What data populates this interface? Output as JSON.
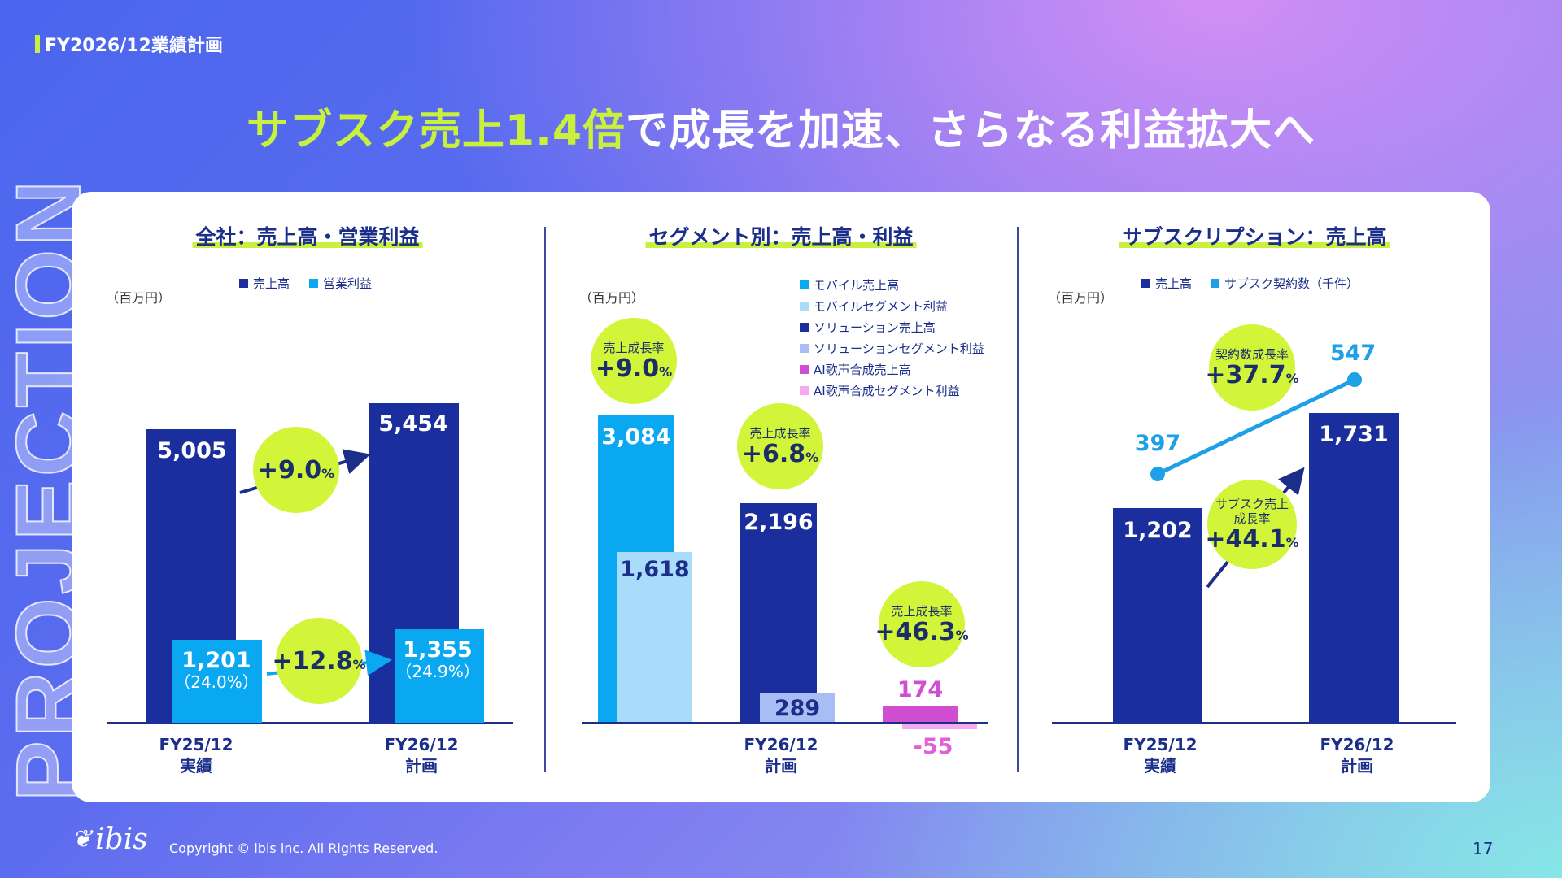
{
  "header": {
    "section_label": "FY2026/12業績計画",
    "title_highlight": "サブスク売上1.4倍",
    "title_rest": "で成長を加速、さらなる利益拡大へ",
    "side_watermark": "PROJECTION"
  },
  "colors": {
    "navy": "#1a2e9e",
    "cyan": "#0aa8f0",
    "light_blue": "#a8dcfa",
    "lavender": "#a9bdf5",
    "magenta": "#d04fd0",
    "pink": "#f5aaf0",
    "lime": "#d2f53a"
  },
  "chart_data": [
    {
      "type": "bar",
      "title": "全社：売上高・営業利益",
      "unit": "（百万円）",
      "categories": [
        "FY25/12 実績",
        "FY26/12 計画"
      ],
      "category_lines": [
        [
          "FY25/12",
          "実績"
        ],
        [
          "FY26/12",
          "計画"
        ]
      ],
      "series": [
        {
          "name": "売上高",
          "color": "#1a2e9e",
          "values": [
            5005,
            5454
          ],
          "labels": [
            "5,005",
            "5,454"
          ]
        },
        {
          "name": "営業利益",
          "color": "#0aa8f0",
          "values": [
            1201,
            1355
          ],
          "labels": [
            "1,201",
            "1,355"
          ],
          "margins": [
            "（24.0%）",
            "（24.9%）"
          ]
        }
      ],
      "annotations": [
        {
          "value": "+9.0",
          "suffix": "%"
        },
        {
          "value": "+12.8",
          "suffix": "%"
        }
      ]
    },
    {
      "type": "bar",
      "title": "セグメント別：売上高・利益",
      "unit": "（百万円）",
      "category_lines": [
        [
          "FY26/12",
          "計画"
        ]
      ],
      "series": [
        {
          "name": "モバイル売上高",
          "color": "#0aa8f0",
          "values": [
            3084
          ],
          "labels": [
            "3,084"
          ]
        },
        {
          "name": "モバイルセグメント利益",
          "color": "#a8dcfa",
          "values": [
            1618
          ],
          "labels": [
            "1,618"
          ]
        },
        {
          "name": "ソリューション売上高",
          "color": "#1a2e9e",
          "values": [
            2196
          ],
          "labels": [
            "2,196"
          ]
        },
        {
          "name": "ソリューションセグメント利益",
          "color": "#a9bdf5",
          "values": [
            289
          ],
          "labels": [
            "289"
          ]
        },
        {
          "name": "AI歌声合成売上高",
          "color": "#d04fd0",
          "values": [
            174
          ],
          "labels": [
            "174"
          ]
        },
        {
          "name": "AI歌声合成セグメント利益",
          "color": "#f5aaf0",
          "values": [
            -55
          ],
          "labels": [
            "-55"
          ]
        }
      ],
      "annotations": [
        {
          "label": "売上成長率",
          "value": "+9.0",
          "suffix": "%"
        },
        {
          "label": "売上成長率",
          "value": "+6.8",
          "suffix": "%"
        },
        {
          "label": "売上成長率",
          "value": "+46.3",
          "suffix": "%"
        }
      ]
    },
    {
      "type": "bar+line",
      "title": "サブスクリプション：売上高",
      "unit": "（百万円）",
      "category_lines": [
        [
          "FY25/12",
          "実績"
        ],
        [
          "FY26/12",
          "計画"
        ]
      ],
      "series": [
        {
          "name": "売上高",
          "color": "#1a2e9e",
          "values": [
            1202,
            1731
          ],
          "labels": [
            "1,202",
            "1,731"
          ]
        },
        {
          "name": "サブスク契約数（千件）",
          "color": "#1ea0e6",
          "type": "line",
          "values": [
            397,
            547
          ],
          "labels": [
            "397",
            "547"
          ]
        }
      ],
      "annotations": [
        {
          "label": "契約数成長率",
          "value": "+37.7",
          "suffix": "%"
        },
        {
          "label": "サブスク売上\n成長率",
          "value": "+44.1",
          "suffix": "%"
        }
      ]
    }
  ],
  "footer": {
    "logo": "ibis",
    "copyright": "Copyright © ibis inc. All Rights Reserved.",
    "page": "17"
  }
}
